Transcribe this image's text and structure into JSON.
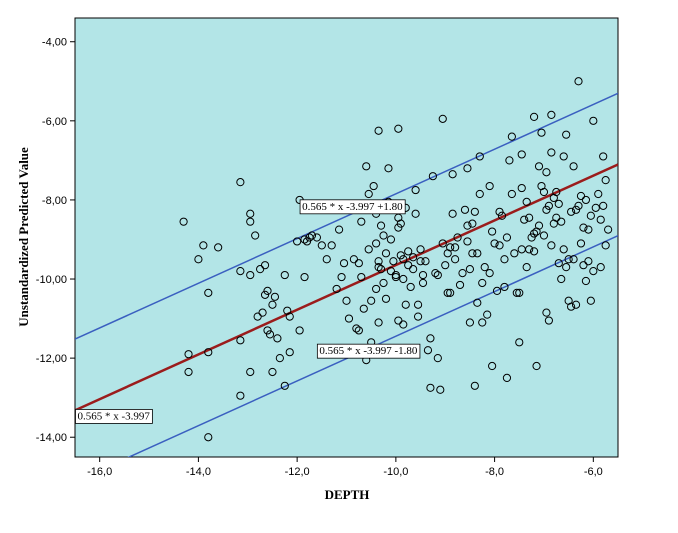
{
  "chart_data": {
    "type": "scatter",
    "title": "",
    "xlabel": "DEPTH",
    "ylabel": "Unstandardized Predicted Value",
    "xlim": [
      -16.5,
      -5.5
    ],
    "ylim": [
      -14.5,
      -3.4
    ],
    "x_ticks": [
      -16.0,
      -14.0,
      -12.0,
      -10.0,
      -8.0,
      -6.0
    ],
    "x_tick_labels": [
      "-16,0",
      "-14,0",
      "-12,0",
      "-10,0",
      "-8,0",
      "-6,0"
    ],
    "y_ticks": [
      -4.0,
      -6.0,
      -8.0,
      -10.0,
      -12.0,
      -14.0
    ],
    "y_tick_labels": [
      "-4,00",
      "-6,00",
      "-8,00",
      "-10,00",
      "-12,00",
      "-14,00"
    ],
    "background_color": "#b3e5e7",
    "marker_color": "#000000",
    "grid": false,
    "lines": [
      {
        "slope": 0.565,
        "intercept": -3.997,
        "color": "#9b1c1c",
        "label": "0.565 * x -3.997",
        "label_x": -16.45,
        "label_y": -13.55
      },
      {
        "slope": 0.565,
        "intercept": -2.197,
        "color": "#3a5fc0",
        "label": "0.565 * x -3.997 +1.80",
        "label_x": -11.9,
        "label_y": -8.25
      },
      {
        "slope": 0.565,
        "intercept": -5.797,
        "color": "#3a5fc0",
        "label": "0.565 * x -3.997 -1.80",
        "label_x": -11.55,
        "label_y": -11.9
      }
    ],
    "points": [
      [
        -14.3,
        -8.55
      ],
      [
        -14.2,
        -11.9
      ],
      [
        -14.2,
        -12.35
      ],
      [
        -14.0,
        -9.5
      ],
      [
        -13.9,
        -9.15
      ],
      [
        -13.8,
        -11.85
      ],
      [
        -13.8,
        -10.35
      ],
      [
        -13.8,
        -14.0
      ],
      [
        -13.6,
        -9.2
      ],
      [
        -13.15,
        -7.55
      ],
      [
        -13.15,
        -9.8
      ],
      [
        -13.15,
        -11.55
      ],
      [
        -13.15,
        -12.95
      ],
      [
        -12.95,
        -8.35
      ],
      [
        -12.95,
        -8.55
      ],
      [
        -12.95,
        -9.9
      ],
      [
        -12.95,
        -12.35
      ],
      [
        -12.85,
        -8.9
      ],
      [
        -12.8,
        -10.95
      ],
      [
        -12.75,
        -9.75
      ],
      [
        -12.7,
        -10.85
      ],
      [
        -12.65,
        -9.65
      ],
      [
        -12.65,
        -10.4
      ],
      [
        -12.6,
        -10.3
      ],
      [
        -12.6,
        -11.3
      ],
      [
        -12.55,
        -11.4
      ],
      [
        -12.5,
        -12.35
      ],
      [
        -12.5,
        -10.65
      ],
      [
        -12.45,
        -10.45
      ],
      [
        -12.4,
        -11.5
      ],
      [
        -12.35,
        -12.0
      ],
      [
        -12.25,
        -9.9
      ],
      [
        -12.25,
        -12.7
      ],
      [
        -12.2,
        -10.8
      ],
      [
        -12.15,
        -11.85
      ],
      [
        -12.15,
        -10.95
      ],
      [
        -12.0,
        -9.05
      ],
      [
        -11.95,
        -8.0
      ],
      [
        -11.95,
        -11.3
      ],
      [
        -11.85,
        -9.0
      ],
      [
        -11.85,
        -9.95
      ],
      [
        -11.8,
        -9.05
      ],
      [
        -11.75,
        -8.95
      ],
      [
        -11.7,
        -8.9
      ],
      [
        -11.6,
        -8.95
      ],
      [
        -11.5,
        -9.15
      ],
      [
        -11.4,
        -9.5
      ],
      [
        -11.3,
        -9.15
      ],
      [
        -11.2,
        -10.25
      ],
      [
        -11.15,
        -8.75
      ],
      [
        -11.1,
        -9.95
      ],
      [
        -11.05,
        -9.6
      ],
      [
        -11.0,
        -10.55
      ],
      [
        -10.95,
        -11.0
      ],
      [
        -10.85,
        -9.5
      ],
      [
        -10.8,
        -11.25
      ],
      [
        -10.75,
        -11.3
      ],
      [
        -10.75,
        -9.6
      ],
      [
        -10.7,
        -8.55
      ],
      [
        -10.7,
        -9.95
      ],
      [
        -10.65,
        -10.75
      ],
      [
        -10.6,
        -12.05
      ],
      [
        -10.55,
        -11.9
      ],
      [
        -10.55,
        -9.25
      ],
      [
        -10.55,
        -7.85
      ],
      [
        -10.5,
        -10.55
      ],
      [
        -10.5,
        -11.6
      ],
      [
        -10.45,
        -7.65
      ],
      [
        -10.4,
        -9.1
      ],
      [
        -10.4,
        -10.25
      ],
      [
        -10.35,
        -9.55
      ],
      [
        -10.35,
        -9.7
      ],
      [
        -10.35,
        -11.1
      ],
      [
        -10.3,
        -8.65
      ],
      [
        -10.3,
        -9.75
      ],
      [
        -10.25,
        -10.1
      ],
      [
        -10.25,
        -8.9
      ],
      [
        -10.2,
        -9.35
      ],
      [
        -10.2,
        -10.5
      ],
      [
        -10.15,
        -7.2
      ],
      [
        -10.15,
        -8.05
      ],
      [
        -10.1,
        -9.8
      ],
      [
        -10.1,
        -9.0
      ],
      [
        -10.05,
        -9.55
      ],
      [
        -10.0,
        -9.9
      ],
      [
        -10.0,
        -9.95
      ],
      [
        -9.95,
        -8.7
      ],
      [
        -9.95,
        -8.45
      ],
      [
        -9.95,
        -11.05
      ],
      [
        -9.95,
        -6.2
      ],
      [
        -9.9,
        -8.6
      ],
      [
        -9.9,
        -9.4
      ],
      [
        -9.85,
        -9.5
      ],
      [
        -9.85,
        -10.0
      ],
      [
        -9.85,
        -11.15
      ],
      [
        -9.8,
        -8.2
      ],
      [
        -9.8,
        -10.65
      ],
      [
        -9.75,
        -9.3
      ],
      [
        -9.75,
        -9.65
      ],
      [
        -9.7,
        -10.2
      ],
      [
        -9.65,
        -9.75
      ],
      [
        -9.65,
        -9.45
      ],
      [
        -9.6,
        -7.75
      ],
      [
        -9.55,
        -10.65
      ],
      [
        -9.55,
        -10.95
      ],
      [
        -9.5,
        -9.25
      ],
      [
        -9.5,
        -9.55
      ],
      [
        -9.45,
        -9.9
      ],
      [
        -9.45,
        -10.1
      ],
      [
        -9.4,
        -9.55
      ],
      [
        -9.35,
        -11.8
      ],
      [
        -9.3,
        -11.5
      ],
      [
        -9.25,
        -7.4
      ],
      [
        -9.2,
        -9.85
      ],
      [
        -9.15,
        -12.0
      ],
      [
        -9.1,
        -12.8
      ],
      [
        -9.05,
        -5.95
      ],
      [
        -9.05,
        -9.1
      ],
      [
        -9.0,
        -9.65
      ],
      [
        -8.95,
        -9.35
      ],
      [
        -8.95,
        -10.35
      ],
      [
        -8.9,
        -9.2
      ],
      [
        -8.9,
        -10.35
      ],
      [
        -8.85,
        -7.35
      ],
      [
        -8.85,
        -8.35
      ],
      [
        -8.8,
        -9.2
      ],
      [
        -8.8,
        -9.5
      ],
      [
        -8.75,
        -8.95
      ],
      [
        -8.7,
        -10.15
      ],
      [
        -8.65,
        -9.85
      ],
      [
        -8.6,
        -8.25
      ],
      [
        -8.55,
        -8.65
      ],
      [
        -8.55,
        -9.05
      ],
      [
        -8.5,
        -11.1
      ],
      [
        -8.5,
        -9.75
      ],
      [
        -8.45,
        -8.6
      ],
      [
        -8.45,
        -9.35
      ],
      [
        -8.4,
        -12.7
      ],
      [
        -8.4,
        -8.3
      ],
      [
        -8.35,
        -9.35
      ],
      [
        -8.35,
        -10.6
      ],
      [
        -8.3,
        -6.9
      ],
      [
        -8.3,
        -7.85
      ],
      [
        -8.25,
        -10.1
      ],
      [
        -8.25,
        -11.1
      ],
      [
        -8.2,
        -9.7
      ],
      [
        -8.15,
        -10.9
      ],
      [
        -8.1,
        -9.85
      ],
      [
        -8.05,
        -8.8
      ],
      [
        -8.0,
        -9.1
      ],
      [
        -7.95,
        -10.3
      ],
      [
        -7.9,
        -8.3
      ],
      [
        -7.9,
        -9.15
      ],
      [
        -7.85,
        -8.4
      ],
      [
        -7.8,
        -9.5
      ],
      [
        -7.75,
        -12.5
      ],
      [
        -7.75,
        -8.95
      ],
      [
        -7.7,
        -7.0
      ],
      [
        -7.65,
        -7.85
      ],
      [
        -7.6,
        -9.35
      ],
      [
        -7.55,
        -10.35
      ],
      [
        -7.5,
        -10.35
      ],
      [
        -7.5,
        -11.6
      ],
      [
        -7.45,
        -7.7
      ],
      [
        -7.45,
        -9.25
      ],
      [
        -7.4,
        -8.5
      ],
      [
        -7.35,
        -8.05
      ],
      [
        -7.3,
        -9.25
      ],
      [
        -7.3,
        -8.45
      ],
      [
        -7.25,
        -8.95
      ],
      [
        -7.2,
        -8.85
      ],
      [
        -7.2,
        -9.3
      ],
      [
        -7.15,
        -8.8
      ],
      [
        -7.15,
        -12.2
      ],
      [
        -7.1,
        -7.15
      ],
      [
        -7.1,
        -8.65
      ],
      [
        -7.05,
        -7.65
      ],
      [
        -7.0,
        -7.8
      ],
      [
        -7.0,
        -8.9
      ],
      [
        -6.95,
        -7.3
      ],
      [
        -6.95,
        -8.25
      ],
      [
        -6.9,
        -8.15
      ],
      [
        -6.9,
        -11.05
      ],
      [
        -6.85,
        -6.8
      ],
      [
        -6.85,
        -9.15
      ],
      [
        -6.8,
        -7.95
      ],
      [
        -6.8,
        -8.6
      ],
      [
        -6.75,
        -7.8
      ],
      [
        -6.75,
        -8.45
      ],
      [
        -6.7,
        -8.1
      ],
      [
        -6.7,
        -9.6
      ],
      [
        -6.65,
        -8.55
      ],
      [
        -6.65,
        -10.0
      ],
      [
        -6.6,
        -9.25
      ],
      [
        -6.55,
        -6.35
      ],
      [
        -6.5,
        -10.55
      ],
      [
        -6.5,
        -9.5
      ],
      [
        -6.45,
        -8.3
      ],
      [
        -6.45,
        -10.7
      ],
      [
        -6.4,
        -7.15
      ],
      [
        -6.35,
        -10.65
      ],
      [
        -6.35,
        -8.25
      ],
      [
        -6.3,
        -5.0
      ],
      [
        -6.3,
        -8.15
      ],
      [
        -6.25,
        -9.1
      ],
      [
        -6.25,
        -7.9
      ],
      [
        -6.2,
        -8.7
      ],
      [
        -6.2,
        -9.65
      ],
      [
        -6.15,
        -8.0
      ],
      [
        -6.15,
        -10.05
      ],
      [
        -6.1,
        -8.75
      ],
      [
        -6.1,
        -9.55
      ],
      [
        -6.05,
        -8.4
      ],
      [
        -6.05,
        -10.55
      ],
      [
        -6.0,
        -6.0
      ],
      [
        -6.0,
        -9.8
      ],
      [
        -5.95,
        -8.2
      ],
      [
        -5.9,
        -7.85
      ],
      [
        -5.85,
        -8.5
      ],
      [
        -5.85,
        -9.7
      ],
      [
        -5.8,
        -6.9
      ],
      [
        -5.8,
        -8.15
      ],
      [
        -5.75,
        -7.5
      ],
      [
        -5.75,
        -9.15
      ],
      [
        -5.7,
        -8.75
      ],
      [
        -7.2,
        -5.9
      ],
      [
        -7.05,
        -6.3
      ],
      [
        -6.85,
        -5.85
      ],
      [
        -6.6,
        -6.9
      ],
      [
        -6.95,
        -10.85
      ],
      [
        -7.35,
        -9.7
      ],
      [
        -7.8,
        -10.2
      ],
      [
        -8.05,
        -12.2
      ],
      [
        -9.15,
        -9.9
      ],
      [
        -9.3,
        -12.75
      ],
      [
        -10.35,
        -6.25
      ],
      [
        -10.6,
        -7.15
      ],
      [
        -10.4,
        -8.35
      ],
      [
        -9.6,
        -8.35
      ],
      [
        -8.55,
        -7.2
      ],
      [
        -8.1,
        -7.65
      ],
      [
        -7.65,
        -6.4
      ],
      [
        -7.45,
        -6.85
      ],
      [
        -6.55,
        -9.7
      ],
      [
        -6.4,
        -9.5
      ]
    ]
  }
}
